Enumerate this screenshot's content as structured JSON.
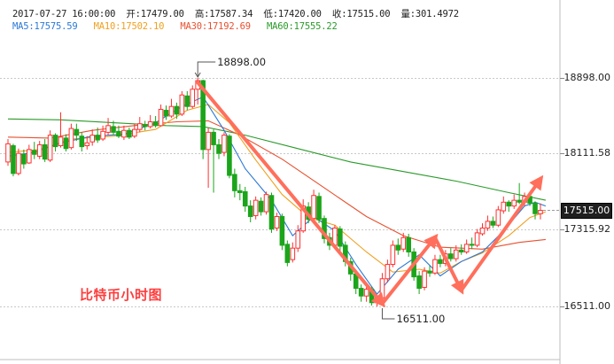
{
  "header": {
    "date": "2017-07-27",
    "time": "16:00:00",
    "open_label": "开:",
    "open": "17479.00",
    "high_label": "高:",
    "high": "17587.34",
    "low_label": "低:",
    "low": "17420.00",
    "close_label": "收:",
    "close": "17515.00",
    "volume_label": "量:",
    "volume": "301.4972"
  },
  "ma": {
    "ma5_label": "MA5:",
    "ma5": "17575.59",
    "ma10_label": "MA10:",
    "ma10": "17502.10",
    "ma30_label": "MA30:",
    "ma30": "17192.69",
    "ma60_label": "MA60:",
    "ma60": "17555.22"
  },
  "colors": {
    "up": "#ff3030",
    "down": "#1aa51a",
    "ma5": "#2a78d6",
    "ma10": "#f0a020",
    "ma30": "#e85030",
    "ma60": "#2a9a2a",
    "arrow": "#ff6f5c",
    "gridline": "#c8c8c8"
  },
  "caption": "比特币小时图",
  "chart_data": {
    "type": "candlestick",
    "ylim": [
      16400,
      19100
    ],
    "yticks": [
      "18898.00",
      "18111.58",
      "17315.92",
      "16511.00"
    ],
    "ytick_values": [
      18898,
      18111.58,
      17315.92,
      16511
    ],
    "last_price_tag": "17515.00",
    "last_price": 17515,
    "high_marker": {
      "label": "18898.00",
      "value": 18898,
      "candle": 36
    },
    "low_marker": {
      "label": "16511.00",
      "value": 16511,
      "candle": 71
    },
    "candles": [
      [
        18020,
        18210,
        18260,
        17980
      ],
      [
        18190,
        17900,
        18210,
        17870
      ],
      [
        17900,
        18110,
        18160,
        17880
      ],
      [
        18100,
        18000,
        18150,
        17950
      ],
      [
        18010,
        18150,
        18200,
        18000
      ],
      [
        18140,
        18100,
        18230,
        18050
      ],
      [
        18080,
        18200,
        18240,
        18050
      ],
      [
        18200,
        18050,
        18260,
        18020
      ],
      [
        18040,
        18300,
        18350,
        18020
      ],
      [
        18300,
        18180,
        18320,
        18130
      ],
      [
        18190,
        18280,
        18540,
        18170
      ],
      [
        18270,
        18160,
        18310,
        18130
      ],
      [
        18170,
        18370,
        18420,
        18150
      ],
      [
        18360,
        18300,
        18420,
        18240
      ],
      [
        18290,
        18180,
        18330,
        18130
      ],
      [
        18190,
        18220,
        18290,
        18150
      ],
      [
        18230,
        18300,
        18360,
        18190
      ],
      [
        18300,
        18250,
        18380,
        18220
      ],
      [
        18260,
        18340,
        18400,
        18240
      ],
      [
        18330,
        18400,
        18480,
        18300
      ],
      [
        18390,
        18330,
        18450,
        18300
      ],
      [
        18340,
        18290,
        18400,
        18270
      ],
      [
        18280,
        18350,
        18400,
        18250
      ],
      [
        18350,
        18280,
        18380,
        18260
      ],
      [
        18290,
        18360,
        18420,
        18270
      ],
      [
        18360,
        18420,
        18490,
        18330
      ],
      [
        18410,
        18390,
        18450,
        18350
      ],
      [
        18390,
        18440,
        18510,
        18370
      ],
      [
        18440,
        18400,
        18500,
        18380
      ],
      [
        18400,
        18570,
        18620,
        18390
      ],
      [
        18560,
        18500,
        18610,
        18460
      ],
      [
        18500,
        18600,
        18680,
        18480
      ],
      [
        18600,
        18520,
        18640,
        18470
      ],
      [
        18520,
        18720,
        18760,
        18500
      ],
      [
        18710,
        18600,
        18760,
        18560
      ],
      [
        18600,
        18780,
        18820,
        18580
      ],
      [
        18780,
        18870,
        18898,
        18620
      ],
      [
        18870,
        18150,
        18880,
        18050
      ],
      [
        18150,
        18330,
        18380,
        17750
      ],
      [
        18330,
        18200,
        18360,
        17700
      ],
      [
        18200,
        18110,
        18260,
        18050
      ],
      [
        18120,
        18300,
        18330,
        18080
      ],
      [
        18290,
        17880,
        18310,
        17850
      ],
      [
        17890,
        17720,
        17950,
        17650
      ],
      [
        17720,
        17700,
        17790,
        17620
      ],
      [
        17710,
        17560,
        17760,
        17500
      ],
      [
        17560,
        17450,
        17620,
        17390
      ],
      [
        17460,
        17620,
        17660,
        17420
      ],
      [
        17610,
        17500,
        17650,
        17460
      ],
      [
        17500,
        17680,
        17710,
        17470
      ],
      [
        17670,
        17320,
        17700,
        17280
      ],
      [
        17330,
        17450,
        17490,
        17300
      ],
      [
        17450,
        17150,
        17480,
        17100
      ],
      [
        17160,
        16970,
        17200,
        16930
      ],
      [
        17000,
        17120,
        17180,
        16970
      ],
      [
        17120,
        17300,
        17360,
        17080
      ],
      [
        17300,
        17560,
        17630,
        17280
      ],
      [
        17550,
        17420,
        17600,
        17380
      ],
      [
        17430,
        17670,
        17730,
        17400
      ],
      [
        17660,
        17420,
        17700,
        17380
      ],
      [
        17430,
        17220,
        17460,
        17170
      ],
      [
        17230,
        17150,
        17280,
        17100
      ],
      [
        17150,
        17330,
        17360,
        17120
      ],
      [
        17320,
        17140,
        17350,
        17090
      ],
      [
        17150,
        16980,
        17190,
        16930
      ],
      [
        16980,
        16850,
        17020,
        16780
      ],
      [
        16850,
        16700,
        16890,
        16640
      ],
      [
        16700,
        16620,
        16740,
        16560
      ],
      [
        16620,
        16690,
        16720,
        16560
      ],
      [
        16690,
        16550,
        16720,
        16520
      ],
      [
        16550,
        16600,
        16630,
        16511
      ],
      [
        16600,
        16800,
        16860,
        16570
      ],
      [
        16800,
        16950,
        17000,
        16760
      ],
      [
        16950,
        17150,
        17200,
        16920
      ],
      [
        17150,
        17100,
        17220,
        17050
      ],
      [
        17110,
        17230,
        17280,
        17080
      ],
      [
        17230,
        17080,
        17270,
        17030
      ],
      [
        17080,
        16820,
        17120,
        16780
      ],
      [
        16830,
        16700,
        16880,
        16640
      ],
      [
        16710,
        16880,
        16920,
        16680
      ],
      [
        16880,
        16860,
        16940,
        16820
      ],
      [
        16860,
        17000,
        17050,
        16840
      ],
      [
        17000,
        16960,
        17050,
        16920
      ],
      [
        16960,
        17060,
        17100,
        16930
      ],
      [
        17060,
        17010,
        17120,
        16980
      ],
      [
        17010,
        17100,
        17150,
        16980
      ],
      [
        17100,
        17080,
        17160,
        17050
      ],
      [
        17080,
        17160,
        17210,
        17060
      ],
      [
        17160,
        17150,
        17230,
        17110
      ],
      [
        17150,
        17280,
        17320,
        17130
      ],
      [
        17270,
        17330,
        17380,
        17250
      ],
      [
        17330,
        17400,
        17460,
        17300
      ],
      [
        17400,
        17360,
        17450,
        17330
      ],
      [
        17360,
        17520,
        17560,
        17340
      ],
      [
        17510,
        17600,
        17660,
        17480
      ],
      [
        17600,
        17560,
        17620,
        17500
      ],
      [
        17560,
        17620,
        17680,
        17530
      ],
      [
        17620,
        17600,
        17800,
        17580
      ],
      [
        17600,
        17660,
        17700,
        17560
      ],
      [
        17660,
        17590,
        17690,
        17560
      ],
      [
        17590,
        17480,
        17610,
        17420
      ],
      [
        17479,
        17515,
        17587.34,
        17420
      ]
    ],
    "ma60": [
      [
        0,
        18470
      ],
      [
        10,
        18460
      ],
      [
        20,
        18430
      ],
      [
        30,
        18400
      ],
      [
        37,
        18390
      ],
      [
        45,
        18300
      ],
      [
        55,
        18160
      ],
      [
        65,
        18020
      ],
      [
        75,
        17920
      ],
      [
        85,
        17820
      ],
      [
        95,
        17700
      ],
      [
        102,
        17620
      ]
    ],
    "ma30": [
      [
        0,
        18280
      ],
      [
        8,
        18270
      ],
      [
        16,
        18350
      ],
      [
        24,
        18400
      ],
      [
        32,
        18440
      ],
      [
        38,
        18450
      ],
      [
        44,
        18300
      ],
      [
        52,
        18050
      ],
      [
        60,
        17750
      ],
      [
        68,
        17450
      ],
      [
        75,
        17250
      ],
      [
        82,
        17130
      ],
      [
        90,
        17110
      ],
      [
        97,
        17180
      ],
      [
        102,
        17210
      ]
    ],
    "ma10": [
      [
        0,
        18120
      ],
      [
        6,
        18150
      ],
      [
        12,
        18260
      ],
      [
        20,
        18290
      ],
      [
        28,
        18360
      ],
      [
        34,
        18560
      ],
      [
        38,
        18620
      ],
      [
        42,
        18430
      ],
      [
        47,
        18040
      ],
      [
        52,
        17680
      ],
      [
        57,
        17440
      ],
      [
        62,
        17360
      ],
      [
        68,
        17080
      ],
      [
        73,
        16870
      ],
      [
        78,
        16900
      ],
      [
        82,
        16860
      ],
      [
        86,
        16980
      ],
      [
        90,
        17070
      ],
      [
        95,
        17250
      ],
      [
        99,
        17440
      ],
      [
        102,
        17500
      ]
    ],
    "ma5": [
      [
        0,
        18080
      ],
      [
        5,
        18120
      ],
      [
        10,
        18220
      ],
      [
        16,
        18290
      ],
      [
        22,
        18310
      ],
      [
        28,
        18430
      ],
      [
        33,
        18600
      ],
      [
        37,
        18700
      ],
      [
        41,
        18350
      ],
      [
        45,
        17950
      ],
      [
        50,
        17620
      ],
      [
        54,
        17250
      ],
      [
        58,
        17450
      ],
      [
        62,
        17300
      ],
      [
        66,
        16950
      ],
      [
        70,
        16640
      ],
      [
        74,
        16900
      ],
      [
        78,
        17050
      ],
      [
        82,
        16830
      ],
      [
        86,
        16980
      ],
      [
        90,
        17080
      ],
      [
        94,
        17300
      ],
      [
        98,
        17560
      ],
      [
        100,
        17600
      ],
      [
        102,
        17560
      ]
    ],
    "trend_arrows": [
      {
        "from": [
          36,
          18850
        ],
        "to": [
          71,
          16540
        ]
      },
      {
        "from": [
          71,
          16540
        ],
        "to": [
          81,
          17230
        ]
      },
      {
        "from": [
          81,
          17230
        ],
        "to": [
          86,
          16680
        ]
      },
      {
        "from": [
          86,
          16680
        ],
        "to": [
          101,
          17840
        ]
      }
    ]
  }
}
